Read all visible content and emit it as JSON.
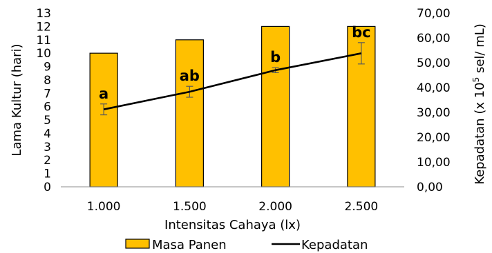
{
  "chart_data": {
    "type": "bar",
    "categories": [
      "1.000",
      "1.500",
      "2.000",
      "2.500"
    ],
    "xlabel": "Intensitas Cahaya (lx)",
    "ylabel_left": "Lama Kultur (hari)",
    "ylabel_right_prefix": "Kepadatan  (x 10",
    "ylabel_right_sup": "5",
    "ylabel_right_suffix": " sel/ mL)",
    "ylim_left": [
      0,
      13
    ],
    "ylim_right": [
      0,
      70
    ],
    "yticks_left": [
      "0",
      "1",
      "2",
      "3",
      "4",
      "5",
      "6",
      "7",
      "8",
      "9",
      "10",
      "11",
      "12",
      "13"
    ],
    "yticks_right": [
      "0,00",
      "10,00",
      "20,00",
      "30,00",
      "40,00",
      "50,00",
      "60,00",
      "70,00"
    ],
    "series": [
      {
        "name": "Masa Panen",
        "kind": "bar",
        "axis": "left",
        "values": [
          10,
          11,
          12,
          12
        ],
        "color": "#FFC000",
        "edge_color": "#000000"
      },
      {
        "name": "Kepadatan",
        "kind": "line",
        "axis": "right",
        "values": [
          31.2,
          38.3,
          47.0,
          53.8
        ],
        "errors": [
          2.2,
          2.2,
          1.0,
          4.3
        ],
        "color": "#000000"
      }
    ],
    "annotations": [
      "a",
      "ab",
      "b",
      "bc"
    ],
    "legend_position": "bottom",
    "grid": false
  }
}
